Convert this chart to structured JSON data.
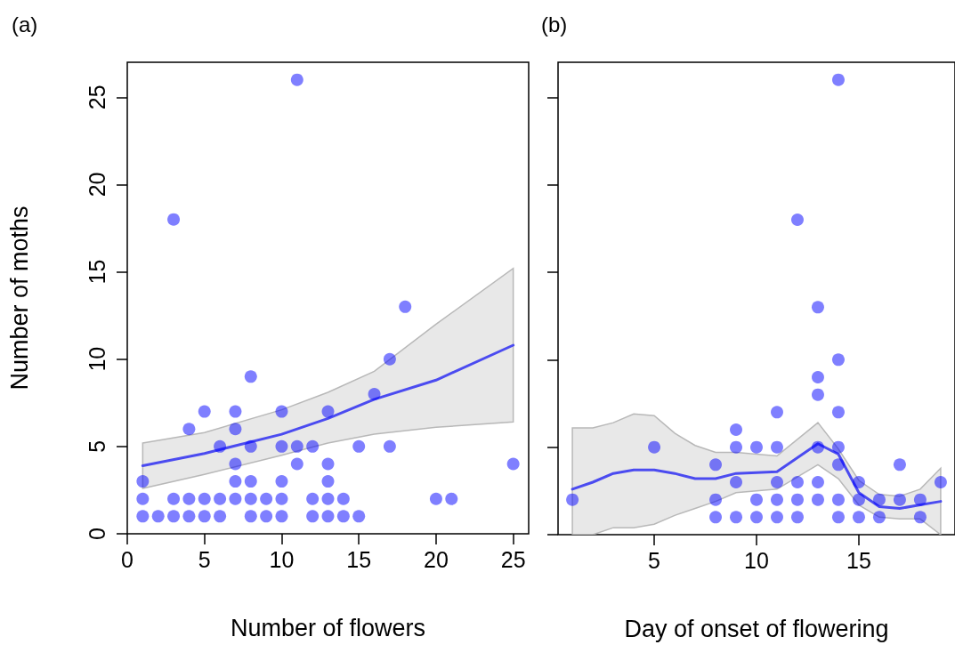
{
  "chart_data": [
    {
      "type": "scatter",
      "title": "(a)",
      "xlabel": "Number of flowers",
      "ylabel": "Number of moths",
      "xlim": [
        0,
        26
      ],
      "xticks": [
        0,
        5,
        10,
        15,
        20,
        25
      ],
      "ylim": [
        0,
        27
      ],
      "yticks": [
        0,
        5,
        10,
        15,
        20,
        25
      ],
      "grid": false,
      "marker": "circle",
      "series": [
        {
          "type": "scatter",
          "color": "#0000ff",
          "x": [
            1,
            2,
            3,
            4,
            5,
            6,
            8,
            9,
            10,
            12,
            13,
            14,
            15,
            1,
            3,
            4,
            5,
            6,
            7,
            8,
            9,
            10,
            12,
            13,
            14,
            20,
            21,
            1,
            7,
            8,
            10,
            13,
            7,
            11,
            13,
            25,
            6,
            8,
            10,
            11,
            12,
            15,
            17,
            4,
            7,
            5,
            7,
            10,
            13,
            16,
            8,
            17,
            18,
            3,
            11
          ],
          "values": [
            1,
            1,
            1,
            1,
            1,
            1,
            1,
            1,
            1,
            1,
            1,
            1,
            1,
            2,
            2,
            2,
            2,
            2,
            2,
            2,
            2,
            2,
            2,
            2,
            2,
            2,
            2,
            3,
            3,
            3,
            3,
            3,
            4,
            4,
            4,
            4,
            5,
            5,
            5,
            5,
            5,
            5,
            5,
            6,
            6,
            7,
            7,
            7,
            7,
            8,
            9,
            10,
            13,
            18,
            26
          ]
        },
        {
          "type": "line",
          "color": "#4b4bf0",
          "marker": "none",
          "x": [
            1,
            5,
            10,
            13,
            16,
            20,
            25
          ],
          "values": [
            3.9,
            4.6,
            5.7,
            6.6,
            7.7,
            8.8,
            10.8
          ],
          "lower": [
            2.6,
            3.4,
            4.5,
            5.2,
            5.7,
            6.1,
            6.4
          ],
          "upper": [
            5.2,
            5.8,
            7.1,
            8.1,
            9.3,
            12.0,
            15.2
          ]
        }
      ]
    },
    {
      "type": "scatter",
      "title": "(b)",
      "xlabel": "Day of onset of flowering",
      "xlim": [
        0.3,
        19.7
      ],
      "xticks": [
        5,
        10,
        15
      ],
      "ylim": [
        0,
        27
      ],
      "yticks": [
        0,
        5,
        10,
        15,
        20,
        25
      ],
      "tick_labels": "x",
      "grid": false,
      "marker": "circle",
      "series": [
        {
          "type": "scatter",
          "color": "#0000ff",
          "x": [
            8,
            9,
            10,
            11,
            12,
            14,
            15,
            16,
            18,
            1,
            8,
            10,
            11,
            12,
            13,
            14,
            15,
            16,
            17,
            18,
            9,
            11,
            12,
            13,
            15,
            19,
            8,
            14,
            17,
            5,
            9,
            10,
            11,
            13,
            14,
            9,
            11,
            14,
            13,
            13,
            14,
            12,
            13,
            14
          ],
          "values": [
            1,
            1,
            1,
            1,
            1,
            1,
            1,
            1,
            1,
            2,
            2,
            2,
            2,
            2,
            2,
            2,
            2,
            2,
            2,
            2,
            3,
            3,
            3,
            3,
            3,
            3,
            4,
            4,
            4,
            5,
            5,
            5,
            5,
            5,
            5,
            6,
            7,
            7,
            8,
            9,
            10,
            18,
            13,
            26
          ]
        },
        {
          "type": "line",
          "color": "#4b4bf0",
          "marker": "none",
          "x": [
            1,
            2,
            3,
            4,
            5,
            6,
            7,
            8,
            9,
            11,
            13,
            14,
            15,
            16,
            17,
            18,
            19
          ],
          "values": [
            2.6,
            3.0,
            3.5,
            3.7,
            3.7,
            3.5,
            3.2,
            3.2,
            3.5,
            3.6,
            5.2,
            4.6,
            2.4,
            1.6,
            1.5,
            1.7,
            1.9
          ],
          "lower": [
            0,
            0,
            0.4,
            0.4,
            0.6,
            1.1,
            1.5,
            1.9,
            2.4,
            2.6,
            4.0,
            3.2,
            1.7,
            1.0,
            0.9,
            0.9,
            0
          ],
          "upper": [
            6.1,
            6.1,
            6.4,
            6.9,
            6.8,
            5.8,
            5.1,
            4.7,
            4.7,
            4.5,
            6.4,
            4.9,
            3.1,
            2.3,
            2.2,
            2.6,
            3.8
          ]
        }
      ]
    }
  ]
}
